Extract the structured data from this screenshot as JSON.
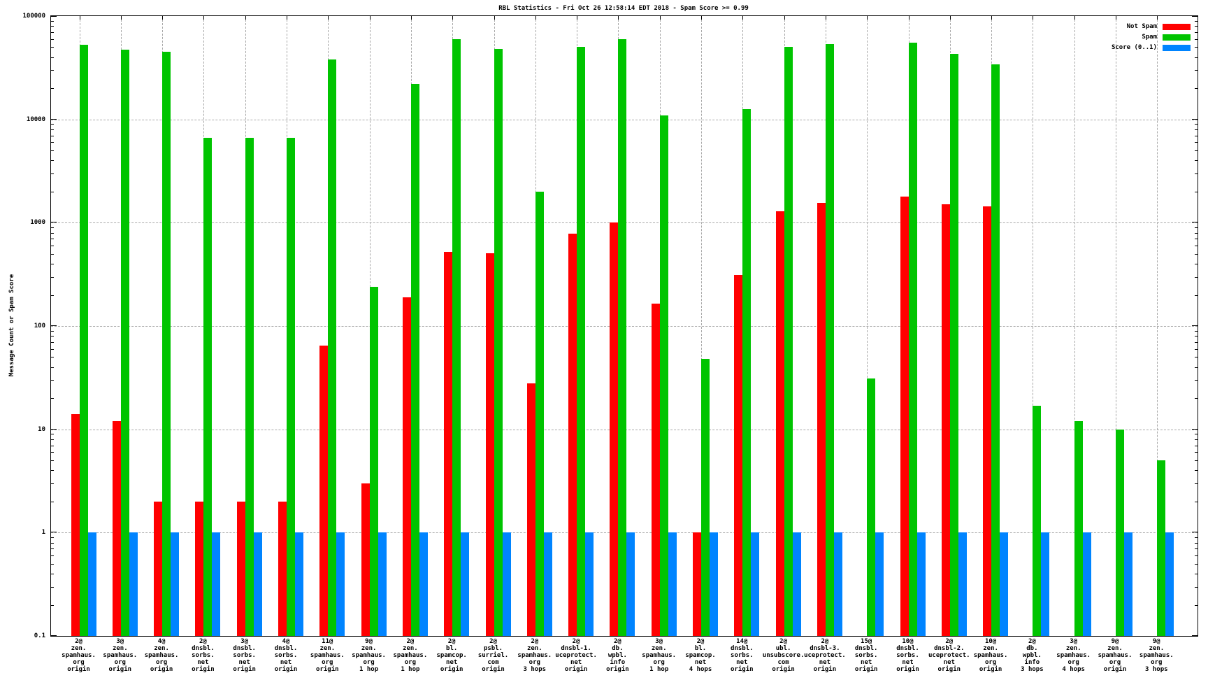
{
  "window": {
    "title": "RBL Statistics - Fri Oct 26 12:58:14 EDT 2018 - Spam Score >= 0.99"
  },
  "chart_data": {
    "type": "bar",
    "title": "RBL Statistics - Fri Oct 26 12:58:14 EDT 2018 - Spam Score >= 0.99",
    "xlabel": "",
    "ylabel": "Message Count or Spam Score",
    "y_scale": "log",
    "ylim": [
      0.1,
      100000
    ],
    "yticks": [
      "100000",
      "10000",
      "1000",
      "100",
      "10",
      "1",
      "0.1"
    ],
    "grid": true,
    "legend_position": "top-right-inside",
    "categories": [
      [
        "2@",
        "zen.",
        "spamhaus.",
        "org",
        "origin"
      ],
      [
        "3@",
        "zen.",
        "spamhaus.",
        "org",
        "origin"
      ],
      [
        "4@",
        "zen.",
        "spamhaus.",
        "org",
        "origin"
      ],
      [
        "2@",
        "dnsbl.",
        "sorbs.",
        "net",
        "origin"
      ],
      [
        "3@",
        "dnsbl.",
        "sorbs.",
        "net",
        "origin"
      ],
      [
        "4@",
        "dnsbl.",
        "sorbs.",
        "net",
        "origin"
      ],
      [
        "11@",
        "zen.",
        "spamhaus.",
        "org",
        "origin"
      ],
      [
        "9@",
        "zen.",
        "spamhaus.",
        "org",
        "1 hop"
      ],
      [
        "2@",
        "zen.",
        "spamhaus.",
        "org",
        "1 hop"
      ],
      [
        "2@",
        "bl.",
        "spamcop.",
        "net",
        "origin"
      ],
      [
        "2@",
        "psbl.",
        "surriel.",
        "com",
        "origin"
      ],
      [
        "2@",
        "zen.",
        "spamhaus.",
        "org",
        "3 hops"
      ],
      [
        "2@",
        "dnsbl-1.",
        "uceprotect.",
        "net",
        "origin"
      ],
      [
        "2@",
        "db.",
        "wpbl.",
        "info",
        "origin"
      ],
      [
        "3@",
        "zen.",
        "spamhaus.",
        "org",
        "1 hop"
      ],
      [
        "2@",
        "bl.",
        "spamcop.",
        "net",
        "4 hops"
      ],
      [
        "14@",
        "dnsbl.",
        "sorbs.",
        "net",
        "origin"
      ],
      [
        "2@",
        "ubl.",
        "unsubscore.",
        "com",
        "origin"
      ],
      [
        "2@",
        "dnsbl-3.",
        "uceprotect.",
        "net",
        "origin"
      ],
      [
        "15@",
        "dnsbl.",
        "sorbs.",
        "net",
        "origin"
      ],
      [
        "10@",
        "dnsbl.",
        "sorbs.",
        "net",
        "origin"
      ],
      [
        "2@",
        "dnsbl-2.",
        "uceprotect.",
        "net",
        "origin"
      ],
      [
        "10@",
        "zen.",
        "spamhaus.",
        "org",
        "origin"
      ],
      [
        "2@",
        "db.",
        "wpbl.",
        "info",
        "3 hops"
      ],
      [
        "3@",
        "zen.",
        "spamhaus.",
        "org",
        "4 hops"
      ],
      [
        "9@",
        "zen.",
        "spamhaus.",
        "org",
        "origin"
      ],
      [
        "9@",
        "zen.",
        "spamhaus.",
        "org",
        "3 hops"
      ]
    ],
    "series": [
      {
        "name": "Not Spam",
        "color": "#ff0000",
        "values": [
          14,
          12,
          2,
          2,
          2,
          2,
          65,
          3,
          190,
          520,
          510,
          28,
          780,
          1000,
          165,
          1,
          310,
          1300,
          1550,
          0,
          1800,
          1500,
          1450,
          0,
          0,
          0,
          0
        ]
      },
      {
        "name": "Spam",
        "color": "#00c400",
        "values": [
          53000,
          47000,
          45000,
          6600,
          6600,
          6600,
          38000,
          240,
          22000,
          60000,
          48000,
          2000,
          50000,
          60000,
          11000,
          48,
          12500,
          50000,
          54000,
          31,
          55000,
          43000,
          34000,
          17,
          12,
          10,
          5
        ]
      },
      {
        "name": "Score (0..1)",
        "color": "#0084ff",
        "values": [
          1,
          1,
          1,
          1,
          1,
          1,
          1,
          1,
          1,
          1,
          1,
          1,
          1,
          1,
          1,
          1,
          1,
          1,
          1,
          1,
          1,
          1,
          1,
          1,
          1,
          1,
          1
        ]
      }
    ]
  }
}
